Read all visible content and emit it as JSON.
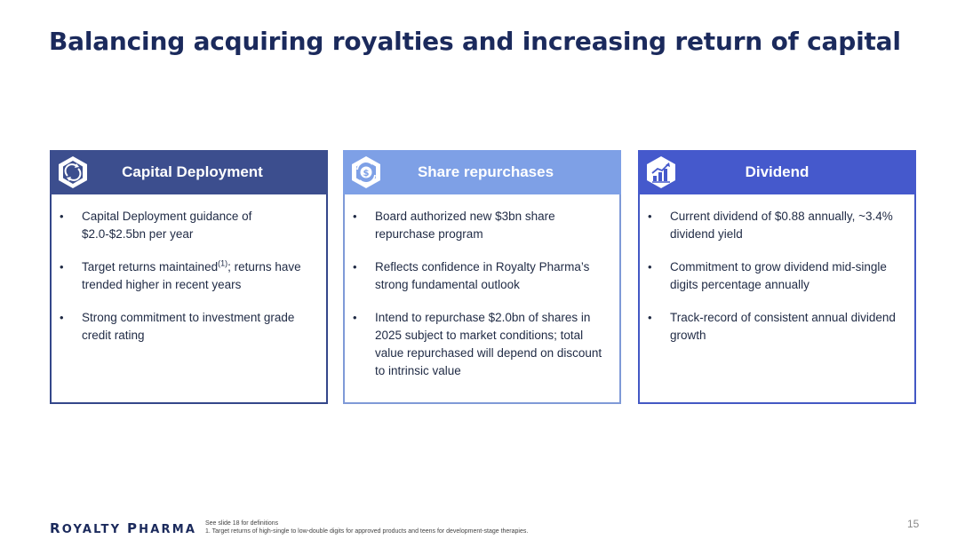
{
  "title": "Balancing acquiring royalties and increasing return of capital",
  "cards": [
    {
      "heading": "Capital Deployment",
      "icon": "arrows-cycle-icon",
      "color": "#3c4e8e",
      "bullets": [
        {
          "text": "Capital Deployment guidance of $2.0-$2.5bn per year"
        },
        {
          "pre": "Target returns maintained",
          "sup": "(1)",
          "post": "; returns have trended higher in recent years"
        },
        {
          "text": "Strong commitment to investment grade credit rating"
        }
      ]
    },
    {
      "heading": "Share repurchases",
      "icon": "dollar-cycle-icon",
      "color": "#7ea0e6",
      "bullets": [
        {
          "text": "Board authorized new $3bn share repurchase program"
        },
        {
          "text": "Reflects confidence in Royalty Pharma’s strong fundamental outlook"
        },
        {
          "text": "Intend to repurchase $2.0bn of shares in 2025 subject to market conditions; total value repurchased will depend on discount to intrinsic value"
        }
      ]
    },
    {
      "heading": "Dividend",
      "icon": "growth-chart-icon",
      "color": "#4559cc",
      "bullets": [
        {
          "text": "Current dividend of $0.88 annually, ~3.4% dividend yield"
        },
        {
          "text": "Commitment to grow dividend mid-single digits percentage annually"
        },
        {
          "text": "Track-record of consistent annual dividend growth"
        }
      ]
    }
  ],
  "footer": {
    "logo_r": "R",
    "logo_oyalty": "OYALTY ",
    "logo_p": "P",
    "logo_harma": "HARMA",
    "note1": "See slide 18 for definitions",
    "note2": "1. Target returns of high-single to low-double digits for approved products and teens for development-stage therapies.",
    "page": "15"
  }
}
